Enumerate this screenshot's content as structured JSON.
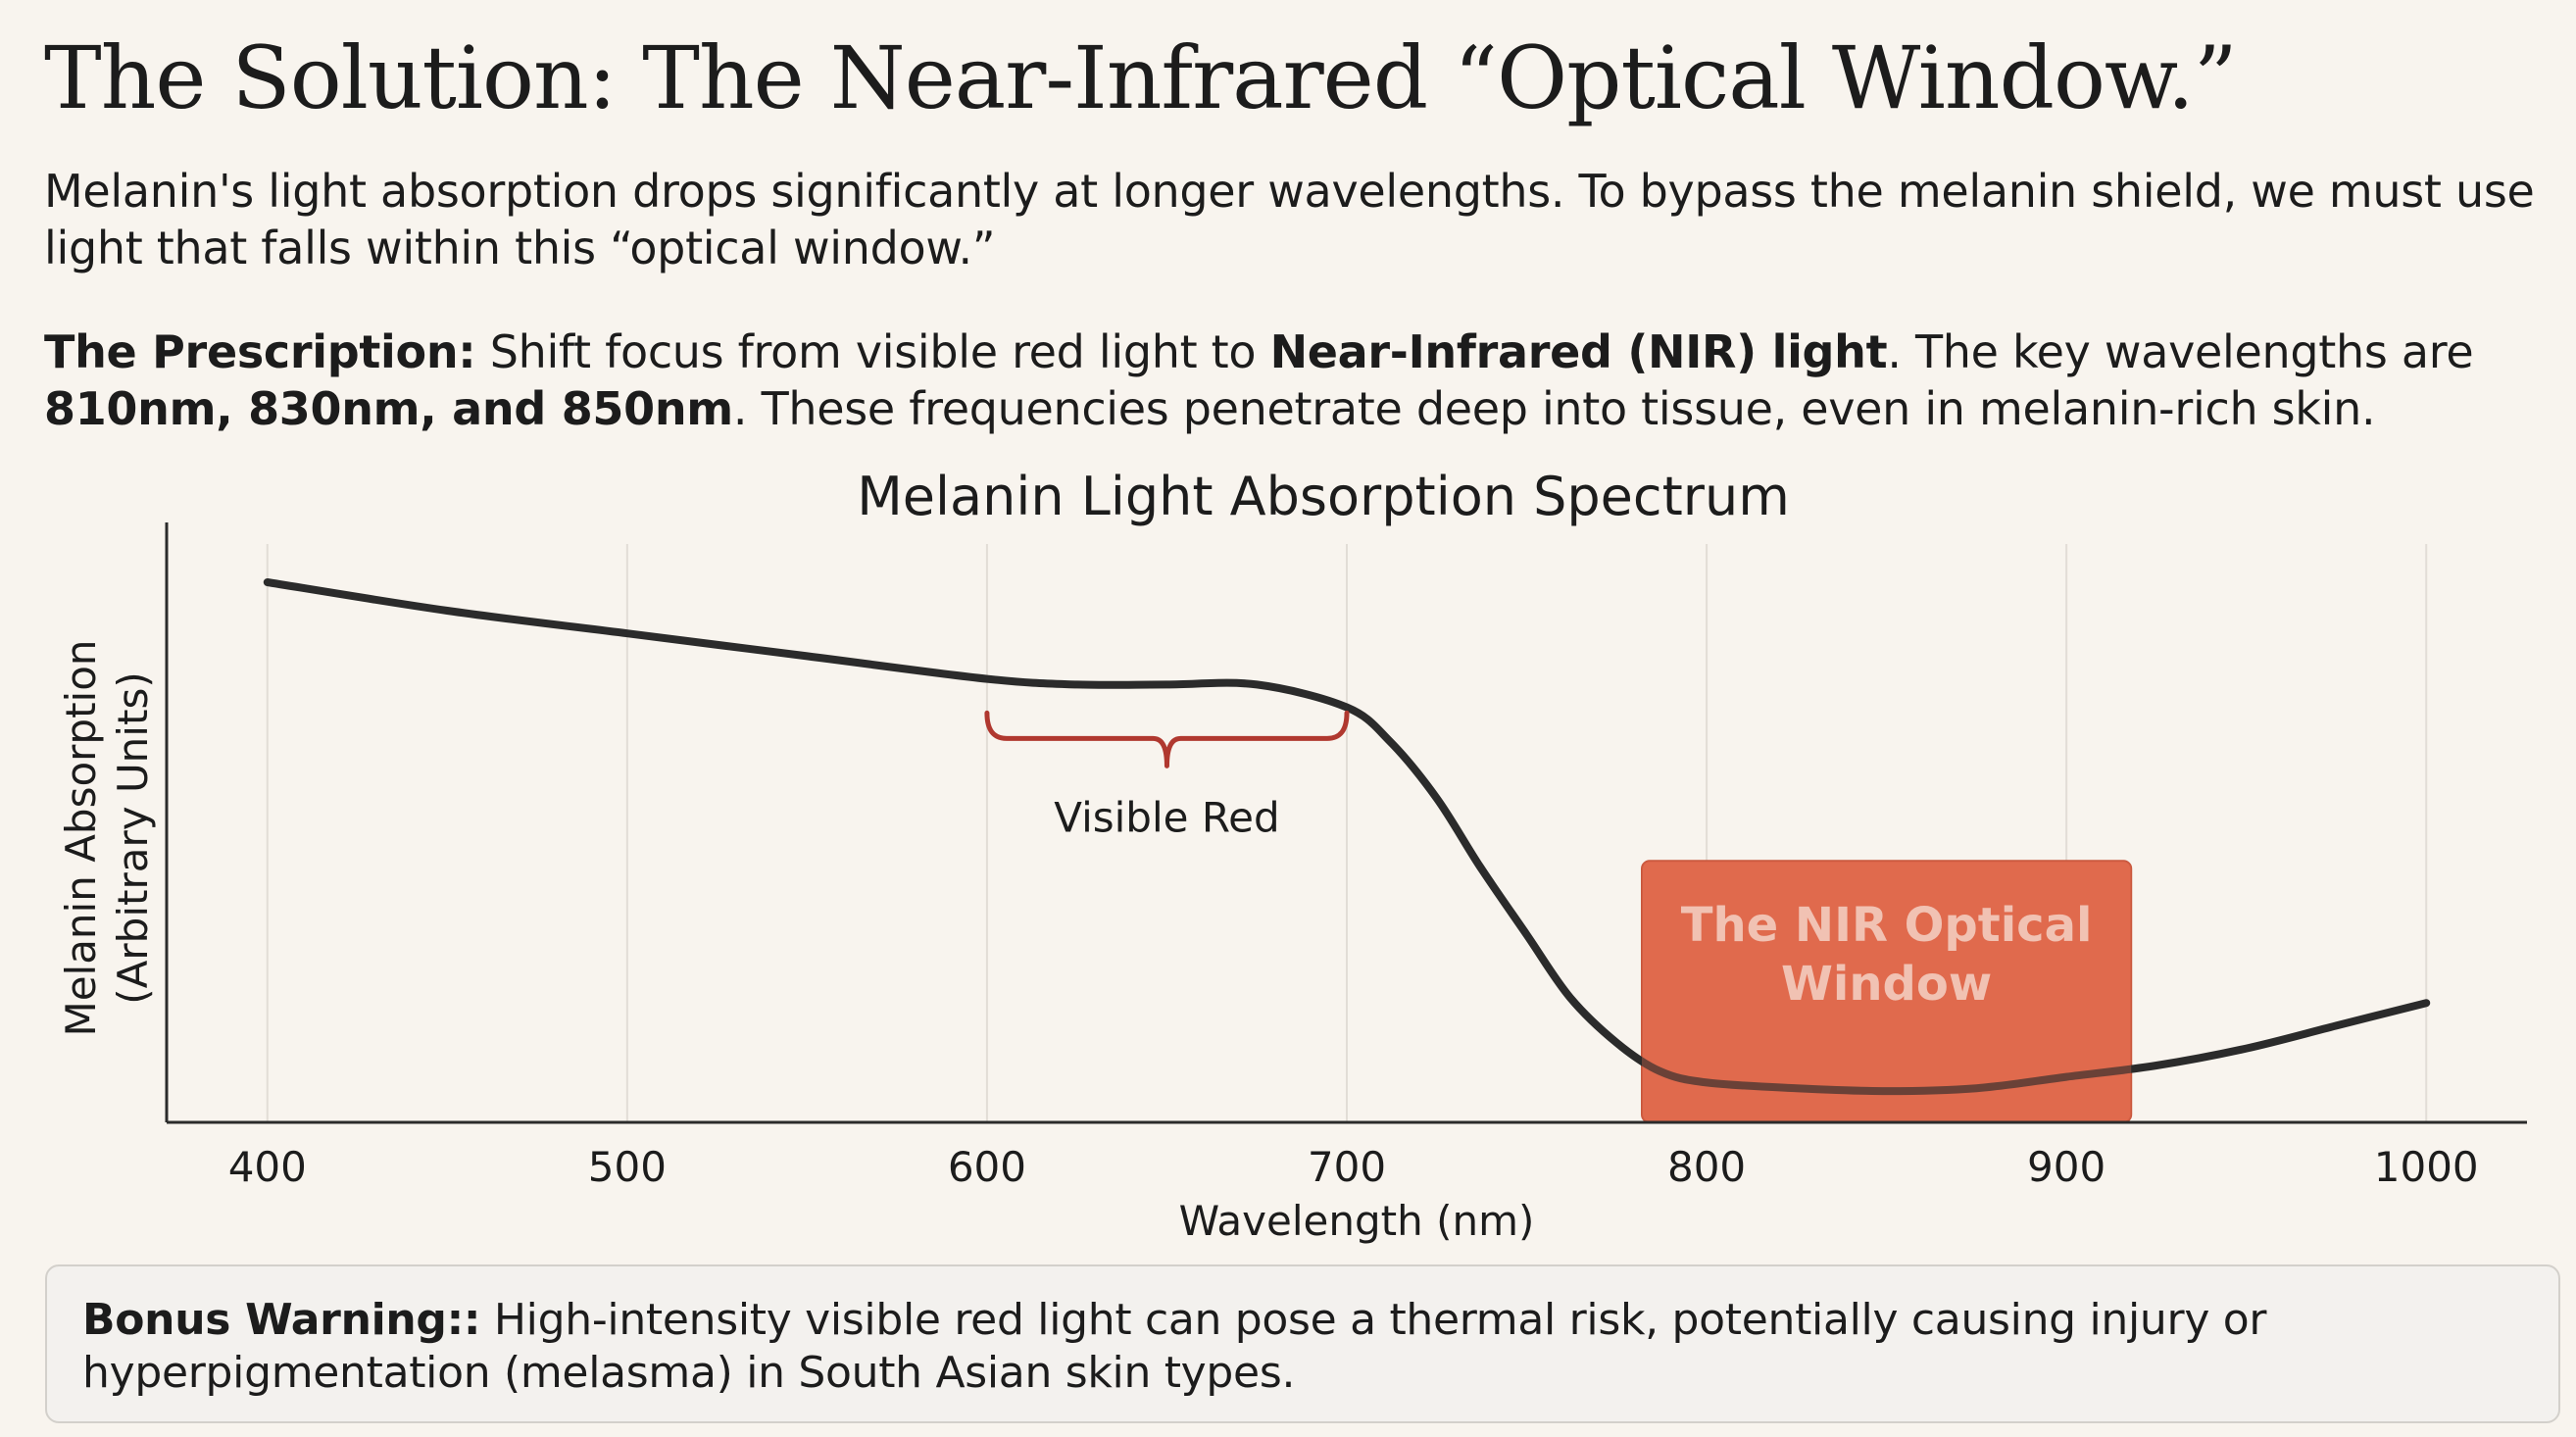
{
  "page": {
    "title": "The Solution: The Near-Infrared “Optical Window.”",
    "intro": "Melanin's light absorption drops significantly at longer wavelengths. To bypass the melanin shield, we must use light that falls within this “optical window.”",
    "prescription": {
      "label": "The Prescription:",
      "text_1": " Shift focus from visible red light to ",
      "bold_1": "Near-Infrared (NIR) light",
      "text_2": ". The key wavelengths are ",
      "bold_2": "810nm, 830nm, and 850nm",
      "text_3": ". These frequencies penetrate deep into tissue, even in melanin-rich skin."
    },
    "warning": {
      "label": "Bonus Warning::",
      "text": " High-intensity visible red light can pose a thermal risk, potentially causing injury or hyperpigmentation (melasma) in South Asian skin types."
    }
  },
  "chart_data": {
    "type": "line",
    "title": "Melanin Light Absorption Spectrum",
    "xlabel": "Wavelength (nm)",
    "ylabel": "Melanin Absorption (Arbitrary Units)",
    "ylabel_lines": [
      "Melanin Absorption",
      "(Arbitrary Units)"
    ],
    "xlim": [
      372,
      1028
    ],
    "ylim": [
      0,
      1.0
    ],
    "xticks": [
      400,
      500,
      600,
      700,
      800,
      900,
      1000
    ],
    "grid": "vertical",
    "series": [
      {
        "name": "Melanin absorption",
        "color": "#2b2b2b",
        "x": [
          400,
          450,
          500,
          550,
          600,
          625,
          650,
          675,
          700,
          712,
          725,
          737,
          750,
          762,
          775,
          787,
          800,
          825,
          850,
          875,
          900,
          925,
          950,
          975,
          1000
        ],
        "y": [
          0.95,
          0.9,
          0.86,
          0.82,
          0.78,
          0.77,
          0.77,
          0.77,
          0.73,
          0.67,
          0.57,
          0.45,
          0.33,
          0.22,
          0.14,
          0.09,
          0.07,
          0.06,
          0.055,
          0.06,
          0.08,
          0.1,
          0.13,
          0.17,
          0.21
        ]
      }
    ],
    "annotations": {
      "visible_red": {
        "label": "Visible Red",
        "x_start": 600,
        "x_end": 700,
        "y": 0.72,
        "color": "#b0382f"
      },
      "nir_window": {
        "label_lines": [
          "The NIR Optical",
          "Window"
        ],
        "x_start": 782,
        "x_end": 918,
        "y_top": 0.46,
        "color": "#e06a4e"
      }
    }
  }
}
